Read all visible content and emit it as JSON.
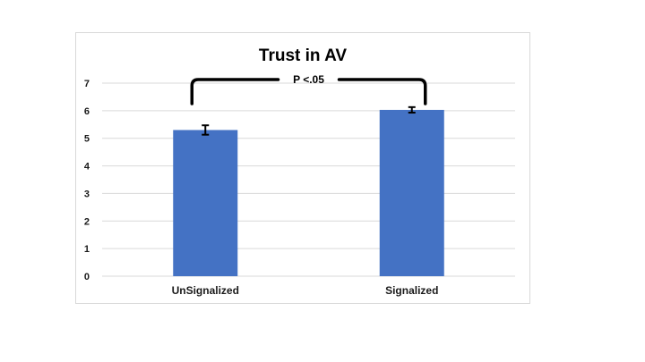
{
  "chart_data": {
    "type": "bar",
    "title": "Trust in AV",
    "categories": [
      "UnSignalized",
      "Signalized"
    ],
    "values": [
      5.3,
      6.03
    ],
    "error": [
      0.17,
      0.1
    ],
    "ylim": [
      0,
      7
    ],
    "yticks": [
      0,
      1,
      2,
      3,
      4,
      5,
      6,
      7
    ],
    "grid": true,
    "xlabel": "",
    "ylabel": "",
    "annotation": "P <.05",
    "colors": {
      "bar": "#4472c4",
      "grid": "#d9d9d9",
      "error": "#000000",
      "bracket": "#000000"
    }
  }
}
